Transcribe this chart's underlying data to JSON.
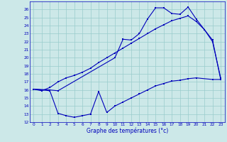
{
  "xlabel": "Graphe des températures (°c)",
  "xlim": [
    -0.5,
    23.5
  ],
  "ylim": [
    12,
    27
  ],
  "yticks": [
    12,
    13,
    14,
    15,
    16,
    17,
    18,
    19,
    20,
    21,
    22,
    23,
    24,
    25,
    26
  ],
  "xticks": [
    0,
    1,
    2,
    3,
    4,
    5,
    6,
    7,
    8,
    9,
    10,
    11,
    12,
    13,
    14,
    15,
    16,
    17,
    18,
    19,
    20,
    21,
    22,
    23
  ],
  "bg_color": "#cce8e8",
  "line_color": "#0000bb",
  "grid_color": "#99cccc",
  "line1_x": [
    0,
    2,
    3,
    10,
    11,
    12,
    13,
    14,
    15,
    16,
    17,
    18,
    19,
    20,
    22,
    23
  ],
  "line1_y": [
    16.1,
    16.0,
    15.9,
    20.0,
    22.3,
    22.2,
    23.0,
    24.8,
    26.2,
    26.2,
    25.5,
    25.4,
    26.3,
    24.8,
    22.2,
    17.3
  ],
  "line2_x": [
    0,
    1,
    2,
    3,
    4,
    5,
    6,
    7,
    8,
    9,
    10,
    11,
    12,
    13,
    14,
    15,
    16,
    17,
    18,
    19,
    20,
    21,
    22,
    23
  ],
  "line2_y": [
    16.1,
    15.9,
    16.3,
    17.0,
    17.5,
    17.8,
    18.2,
    18.7,
    19.4,
    20.0,
    20.6,
    21.2,
    21.8,
    22.4,
    23.0,
    23.6,
    24.1,
    24.6,
    24.9,
    25.2,
    24.5,
    23.5,
    22.0,
    17.5
  ],
  "line3_x": [
    0,
    2,
    3,
    4,
    5,
    6,
    7,
    8,
    9,
    10,
    11,
    12,
    13,
    14,
    15,
    16,
    17,
    18,
    19,
    20,
    22,
    23
  ],
  "line3_y": [
    16.1,
    15.9,
    13.1,
    12.8,
    12.6,
    12.8,
    13.0,
    15.8,
    13.2,
    14.0,
    14.5,
    15.0,
    15.5,
    16.0,
    16.5,
    16.8,
    17.1,
    17.2,
    17.4,
    17.5,
    17.3,
    17.3
  ]
}
